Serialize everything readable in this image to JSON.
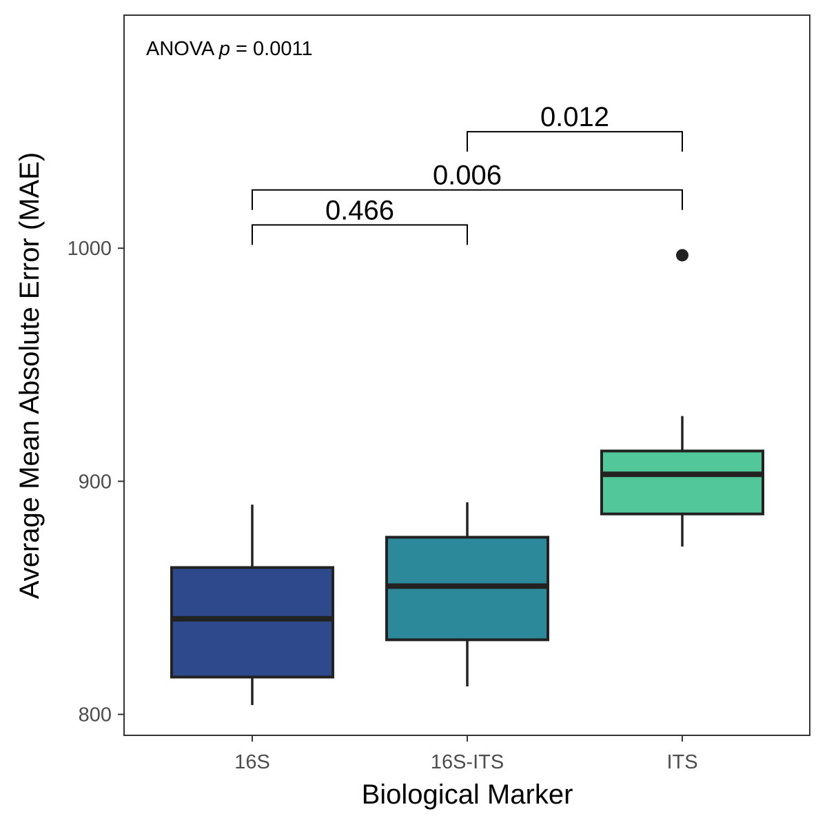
{
  "chart_data": {
    "type": "box",
    "xlabel": "Biological Marker",
    "ylabel": "Average Mean Absolute Error (MAE)",
    "ylim": [
      791,
      1100
    ],
    "yticks": [
      800,
      900,
      1000
    ],
    "grid": false,
    "annotation": {
      "prefix": "ANOVA ",
      "symbol": "p",
      "suffix": " = 0.0011"
    },
    "categories": [
      "16S",
      "16S-ITS",
      "ITS"
    ],
    "boxes": [
      {
        "category": "16S",
        "whisker_low": 804,
        "q1": 816,
        "median": 841,
        "q3": 863,
        "whisker_high": 890,
        "color": "#2E4A8C",
        "outliers": []
      },
      {
        "category": "16S-ITS",
        "whisker_low": 812,
        "q1": 832,
        "median": 855,
        "q3": 876,
        "whisker_high": 891,
        "color": "#2C8999",
        "outliers": []
      },
      {
        "category": "ITS",
        "whisker_low": 872,
        "q1": 886,
        "median": 903,
        "q3": 913,
        "whisker_high": 928,
        "color": "#52C89A",
        "outliers": [
          997
        ]
      }
    ],
    "comparisons": [
      {
        "from": "16S",
        "to": "16S-ITS",
        "label": "0.466",
        "y": 1010
      },
      {
        "from": "16S",
        "to": "ITS",
        "label": "0.006",
        "y": 1025
      },
      {
        "from": "16S-ITS",
        "to": "ITS",
        "label": "0.012",
        "y": 1050
      }
    ]
  }
}
